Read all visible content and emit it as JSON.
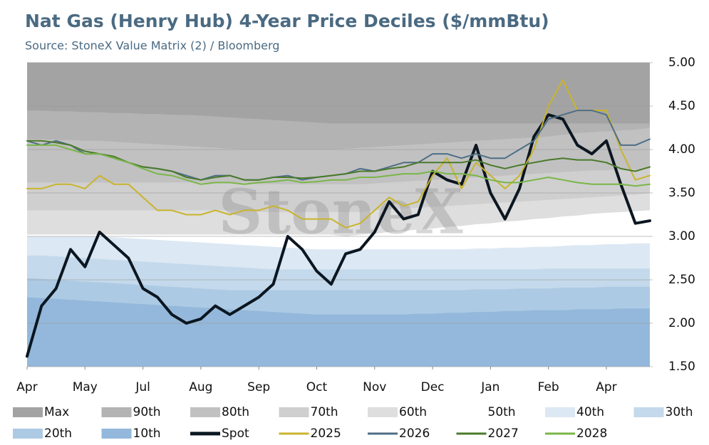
{
  "chart_data": {
    "type": "line",
    "title": "Nat Gas (Henry Hub) 4-Year Price Deciles ($/mmBtu)",
    "subtitle": "Source: StoneX Value Matrix (2) / Bloomberg",
    "watermark": "StoneX",
    "x": [
      0,
      1,
      2,
      3,
      4,
      5,
      6,
      7,
      8,
      9,
      10,
      11,
      12,
      13,
      14,
      15,
      16,
      17,
      18,
      19,
      20,
      21,
      22,
      23,
      24,
      25,
      26,
      27,
      28,
      29,
      30,
      31,
      32,
      33,
      34,
      35,
      36,
      37,
      38,
      39,
      40,
      41,
      42,
      43
    ],
    "xlim": [
      0,
      43.2
    ],
    "xticks": [
      {
        "value": 0,
        "label": "Apr"
      },
      {
        "value": 4,
        "label": "May"
      },
      {
        "value": 8,
        "label": "Jul"
      },
      {
        "value": 12,
        "label": "Aug"
      },
      {
        "value": 16,
        "label": "Sep"
      },
      {
        "value": 20,
        "label": "Oct"
      },
      {
        "value": 24,
        "label": "Nov"
      },
      {
        "value": 28,
        "label": "Dec"
      },
      {
        "value": 32,
        "label": "Jan"
      },
      {
        "value": 36,
        "label": "Feb"
      },
      {
        "value": 40,
        "label": "Apr"
      }
    ],
    "ylim": [
      1.5,
      5
    ],
    "yticks": [
      {
        "value": 1.5,
        "label": "1.50"
      },
      {
        "value": 2,
        "label": "2.00"
      },
      {
        "value": 2.5,
        "label": "2.50"
      },
      {
        "value": 3,
        "label": "3.00"
      },
      {
        "value": 3.5,
        "label": "3.50"
      },
      {
        "value": 4,
        "label": "4.00"
      },
      {
        "value": 4.5,
        "label": "4.50"
      },
      {
        "value": 5,
        "label": "5.00"
      }
    ],
    "grid": true,
    "legend": "bottom",
    "series": [
      {
        "name": "Max",
        "style": "area",
        "color": "#a3a3a3",
        "values": [
          5,
          5,
          5,
          5,
          5,
          5,
          5,
          5,
          5,
          5,
          5,
          5,
          5,
          5,
          5,
          5,
          5,
          5,
          5,
          5,
          5,
          5,
          5,
          5,
          5,
          5,
          5,
          5,
          5,
          5,
          5,
          5,
          5,
          5,
          5,
          5,
          5,
          5,
          5,
          5,
          5,
          5,
          5,
          5
        ]
      },
      {
        "name": "90th",
        "style": "area",
        "color": "#b3b3b3",
        "values": [
          4.45,
          4.45,
          4.44,
          4.44,
          4.43,
          4.43,
          4.42,
          4.42,
          4.41,
          4.41,
          4.4,
          4.4,
          4.39,
          4.38,
          4.37,
          4.36,
          4.35,
          4.34,
          4.33,
          4.32,
          4.31,
          4.3,
          4.3,
          4.3,
          4.3,
          4.3,
          4.3,
          4.3,
          4.3,
          4.3,
          4.3,
          4.3,
          4.3,
          4.3,
          4.3,
          4.3,
          4.3,
          4.3,
          4.3,
          4.3,
          4.3,
          4.3,
          4.3,
          4.3
        ]
      },
      {
        "name": "80th",
        "style": "area",
        "color": "#c1c1c1",
        "values": [
          4.12,
          4.12,
          4.11,
          4.11,
          4.1,
          4.1,
          4.09,
          4.08,
          4.07,
          4.06,
          4.05,
          4.04,
          4.03,
          4.02,
          4.01,
          4,
          4,
          4,
          4,
          4,
          4,
          4,
          4.01,
          4.02,
          4.03,
          4.04,
          4.05,
          4.06,
          4.07,
          4.08,
          4.09,
          4.1,
          4.11,
          4.12,
          4.13,
          4.14,
          4.15,
          4.17,
          4.19,
          4.2,
          4.21,
          4.22,
          4.23,
          4.25
        ]
      },
      {
        "name": "70th",
        "style": "area",
        "color": "#cfcfcf",
        "values": [
          3.62,
          3.62,
          3.62,
          3.62,
          3.62,
          3.62,
          3.62,
          3.62,
          3.62,
          3.62,
          3.62,
          3.62,
          3.62,
          3.62,
          3.62,
          3.62,
          3.6,
          3.6,
          3.6,
          3.6,
          3.6,
          3.6,
          3.6,
          3.6,
          3.61,
          3.62,
          3.63,
          3.64,
          3.65,
          3.66,
          3.67,
          3.68,
          3.69,
          3.7,
          3.71,
          3.72,
          3.73,
          3.74,
          3.75,
          3.76,
          3.76,
          3.77,
          3.77,
          3.78
        ]
      },
      {
        "name": "60th",
        "style": "area",
        "color": "#dedede",
        "values": [
          3.3,
          3.3,
          3.3,
          3.3,
          3.3,
          3.3,
          3.3,
          3.3,
          3.3,
          3.3,
          3.3,
          3.3,
          3.3,
          3.3,
          3.3,
          3.3,
          3.28,
          3.28,
          3.28,
          3.28,
          3.28,
          3.28,
          3.28,
          3.28,
          3.3,
          3.31,
          3.32,
          3.33,
          3.34,
          3.35,
          3.36,
          3.37,
          3.38,
          3.39,
          3.4,
          3.41,
          3.42,
          3.43,
          3.44,
          3.45,
          3.46,
          3.47,
          3.48,
          3.5
        ]
      },
      {
        "name": "50th",
        "style": "area",
        "color": "#ffffff",
        "values": [
          3.02,
          3.02,
          3.02,
          3.02,
          3.02,
          3.02,
          3.02,
          3.02,
          3.02,
          3.02,
          3.02,
          3.02,
          3.02,
          3.02,
          3.02,
          3.02,
          3.02,
          3.02,
          3.02,
          3.02,
          3.02,
          3.02,
          3,
          3.02,
          3.03,
          3.05,
          3.06,
          3.08,
          3.09,
          3.11,
          3.12,
          3.14,
          3.15,
          3.17,
          3.18,
          3.2,
          3.21,
          3.23,
          3.24,
          3.26,
          3.27,
          3.28,
          3.29,
          3.3
        ]
      },
      {
        "name": "40th",
        "style": "area",
        "color": "#dce8f3",
        "values": [
          3,
          3,
          3,
          3,
          3,
          3,
          2.99,
          2.98,
          2.97,
          2.96,
          2.95,
          2.94,
          2.93,
          2.92,
          2.91,
          2.9,
          2.89,
          2.88,
          2.87,
          2.86,
          2.85,
          2.85,
          2.85,
          2.85,
          2.85,
          2.85,
          2.85,
          2.85,
          2.85,
          2.85,
          2.85,
          2.86,
          2.86,
          2.87,
          2.87,
          2.88,
          2.88,
          2.89,
          2.9,
          2.9,
          2.91,
          2.91,
          2.92,
          2.92
        ]
      },
      {
        "name": "30th",
        "style": "area",
        "color": "#c4d9eb",
        "values": [
          2.78,
          2.78,
          2.77,
          2.76,
          2.75,
          2.74,
          2.73,
          2.72,
          2.71,
          2.7,
          2.69,
          2.68,
          2.67,
          2.66,
          2.65,
          2.64,
          2.63,
          2.62,
          2.62,
          2.62,
          2.62,
          2.62,
          2.62,
          2.62,
          2.62,
          2.62,
          2.62,
          2.62,
          2.62,
          2.62,
          2.62,
          2.62,
          2.62,
          2.62,
          2.62,
          2.62,
          2.63,
          2.63,
          2.63,
          2.63,
          2.63,
          2.63,
          2.63,
          2.63
        ]
      },
      {
        "name": "20th",
        "style": "area",
        "color": "#adcae4",
        "values": [
          2.52,
          2.51,
          2.5,
          2.49,
          2.48,
          2.47,
          2.46,
          2.45,
          2.44,
          2.43,
          2.42,
          2.41,
          2.4,
          2.39,
          2.38,
          2.38,
          2.38,
          2.38,
          2.38,
          2.38,
          2.38,
          2.38,
          2.38,
          2.38,
          2.38,
          2.38,
          2.38,
          2.38,
          2.38,
          2.38,
          2.38,
          2.39,
          2.39,
          2.39,
          2.4,
          2.4,
          2.4,
          2.41,
          2.41,
          2.41,
          2.42,
          2.42,
          2.42,
          2.42
        ]
      },
      {
        "name": "10th",
        "style": "area",
        "color": "#93b8db",
        "values": [
          2.3,
          2.29,
          2.28,
          2.27,
          2.26,
          2.25,
          2.24,
          2.23,
          2.22,
          2.21,
          2.2,
          2.19,
          2.18,
          2.17,
          2.16,
          2.15,
          2.14,
          2.13,
          2.12,
          2.11,
          2.1,
          2.1,
          2.1,
          2.1,
          2.1,
          2.1,
          2.1,
          2.11,
          2.11,
          2.12,
          2.12,
          2.13,
          2.13,
          2.14,
          2.14,
          2.15,
          2.15,
          2.15,
          2.16,
          2.16,
          2.16,
          2.17,
          2.17,
          2.17
        ]
      },
      {
        "name": "Spot",
        "style": "line",
        "width": 4,
        "color": "#0b1620",
        "values": [
          1.62,
          2.2,
          2.4,
          2.85,
          2.65,
          3.05,
          2.9,
          2.75,
          2.4,
          2.3,
          2.1,
          2,
          2.05,
          2.2,
          2.1,
          2.2,
          2.3,
          2.45,
          3,
          2.85,
          2.6,
          2.45,
          2.8,
          2.85,
          3.05,
          3.4,
          3.2,
          3.25,
          3.75,
          3.65,
          3.6,
          4.05,
          3.5,
          3.2,
          3.55,
          4.15,
          4.4,
          4.35,
          4.05,
          3.95,
          4.1,
          3.6,
          3.15,
          3.18
        ]
      },
      {
        "name": "2025",
        "style": "line",
        "width": 2,
        "color": "#c9b42c",
        "values": [
          3.55,
          3.55,
          3.6,
          3.6,
          3.55,
          3.7,
          3.6,
          3.6,
          3.45,
          3.3,
          3.3,
          3.25,
          3.25,
          3.3,
          3.25,
          3.3,
          3.3,
          3.35,
          3.3,
          3.2,
          3.2,
          3.2,
          3.1,
          3.15,
          3.3,
          3.45,
          3.35,
          3.4,
          3.7,
          3.9,
          3.55,
          3.85,
          3.7,
          3.55,
          3.7,
          4,
          4.5,
          4.8,
          4.45,
          4.45,
          4.45,
          4,
          3.65,
          3.7
        ]
      },
      {
        "name": "2026",
        "style": "line",
        "width": 2,
        "color": "#4e6e86",
        "values": [
          4.1,
          4.05,
          4.1,
          4.05,
          3.95,
          3.95,
          3.9,
          3.85,
          3.8,
          3.78,
          3.75,
          3.7,
          3.65,
          3.7,
          3.7,
          3.65,
          3.65,
          3.68,
          3.7,
          3.65,
          3.68,
          3.7,
          3.72,
          3.78,
          3.75,
          3.8,
          3.85,
          3.85,
          3.95,
          3.95,
          3.9,
          3.95,
          3.9,
          3.9,
          4,
          4.1,
          4.35,
          4.4,
          4.45,
          4.45,
          4.4,
          4.05,
          4.05,
          4.12
        ]
      },
      {
        "name": "2027",
        "style": "line",
        "width": 2,
        "color": "#4a7a2a",
        "values": [
          4.1,
          4.1,
          4.08,
          4.05,
          3.98,
          3.95,
          3.92,
          3.85,
          3.8,
          3.78,
          3.75,
          3.68,
          3.65,
          3.68,
          3.7,
          3.65,
          3.65,
          3.68,
          3.68,
          3.67,
          3.68,
          3.7,
          3.72,
          3.75,
          3.75,
          3.78,
          3.8,
          3.85,
          3.85,
          3.85,
          3.85,
          3.88,
          3.82,
          3.78,
          3.82,
          3.85,
          3.88,
          3.9,
          3.88,
          3.88,
          3.85,
          3.78,
          3.75,
          3.8
        ]
      },
      {
        "name": "2028",
        "style": "line",
        "width": 2,
        "color": "#7ab648",
        "values": [
          4.05,
          4.05,
          4.05,
          4,
          3.95,
          3.95,
          3.9,
          3.85,
          3.78,
          3.72,
          3.7,
          3.65,
          3.6,
          3.62,
          3.62,
          3.6,
          3.62,
          3.63,
          3.65,
          3.62,
          3.63,
          3.65,
          3.65,
          3.68,
          3.68,
          3.7,
          3.72,
          3.72,
          3.75,
          3.72,
          3.72,
          3.7,
          3.65,
          3.62,
          3.62,
          3.65,
          3.68,
          3.65,
          3.62,
          3.6,
          3.6,
          3.6,
          3.58,
          3.6
        ]
      }
    ]
  }
}
